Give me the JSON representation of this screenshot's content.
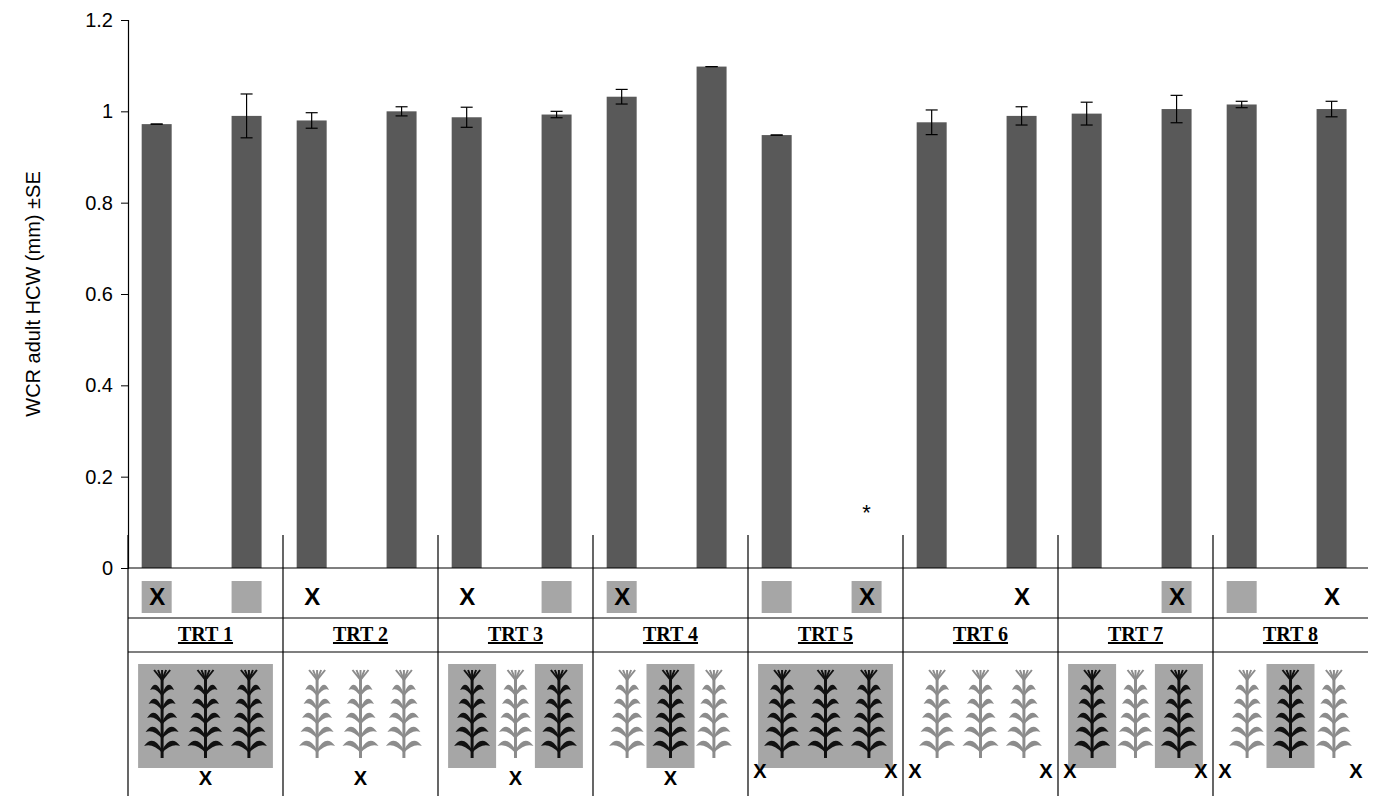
{
  "chart_data": {
    "type": "bar",
    "y_label": "WCR adult HCW (mm) ±SE",
    "categories": [
      "X",
      null,
      "X",
      null,
      "X",
      null,
      "X",
      null,
      null,
      "X",
      null,
      "X",
      null,
      "X",
      null,
      "X"
    ],
    "values": [
      0.972,
      0.99,
      0.98,
      1.0,
      0.987,
      0.993,
      1.032,
      1.098,
      0.948,
      null,
      0.976,
      0.99,
      0.995,
      1.005,
      1.015,
      1.005
    ],
    "errors": [
      0,
      0.048,
      0.017,
      0.01,
      0.022,
      0.007,
      0.016,
      0,
      0,
      null,
      0.027,
      0.02,
      0.025,
      0.03,
      0.007,
      0.017
    ],
    "color": "#595959",
    "ylim": [
      0,
      1.2
    ],
    "yticks": [
      0,
      0.2,
      0.4,
      0.6,
      0.8,
      1,
      1.2
    ],
    "cue_boxes": [
      true,
      true,
      false,
      false,
      false,
      true,
      true,
      false,
      true,
      true,
      false,
      false,
      false,
      true,
      true,
      false
    ],
    "groups": [
      "TRT 1",
      "TRT 2",
      "TRT 3",
      "TRT 4",
      "TRT 5",
      "TRT 6",
      "TRT 7",
      "TRT 8"
    ],
    "group_plants": [
      [
        true,
        true,
        true
      ],
      [
        false,
        false,
        false
      ],
      [
        true,
        false,
        true
      ],
      [
        false,
        true,
        false
      ],
      [
        true,
        true,
        true
      ],
      [
        false,
        false,
        false
      ],
      [
        true,
        false,
        true
      ],
      [
        false,
        true,
        false
      ]
    ],
    "group_markers": [
      [
        "X"
      ],
      [
        "X"
      ],
      [
        "X"
      ],
      [
        "X"
      ],
      [
        "X",
        "X"
      ],
      [
        "X",
        "X"
      ],
      [
        "X",
        "X"
      ],
      [
        "X",
        "X"
      ]
    ],
    "annotations": [
      {
        "text": "*",
        "index": 9
      }
    ]
  }
}
